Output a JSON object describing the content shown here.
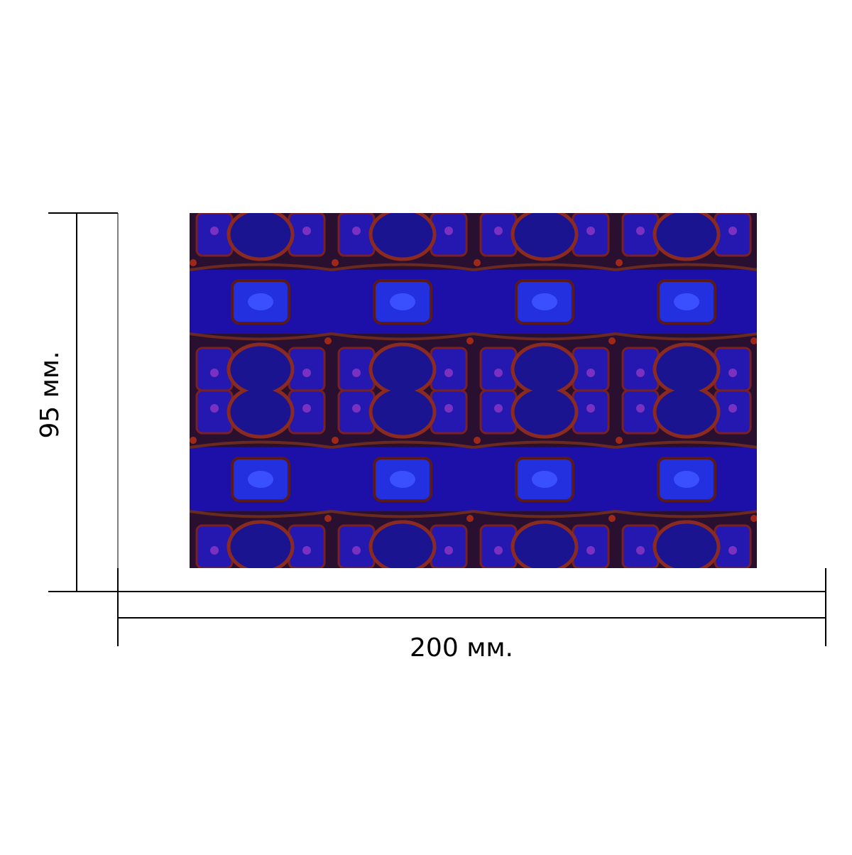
{
  "dimensions": {
    "height": "95 мм.",
    "width": "200 мм."
  }
}
